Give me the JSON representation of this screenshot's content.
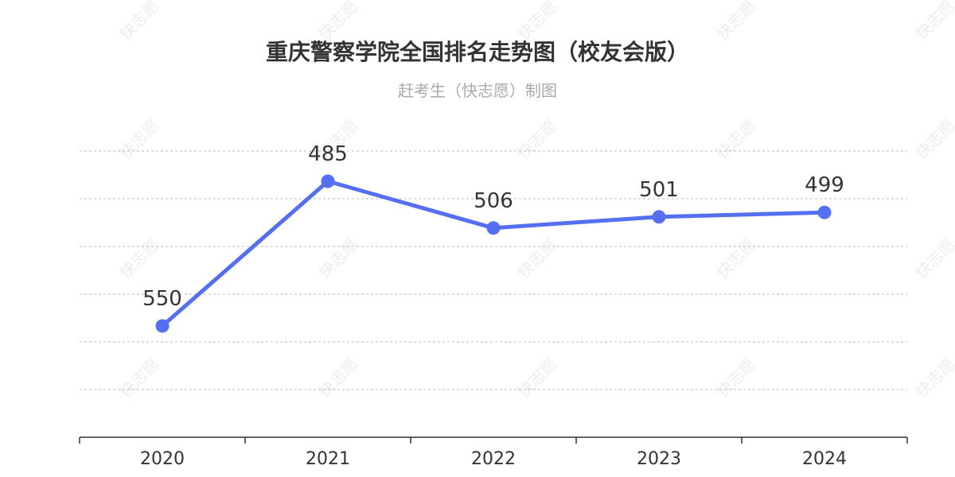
{
  "watermark": "快志愿",
  "colors": {
    "series": "#5470f0",
    "grid": "#bbbbbb",
    "axis": "#333333"
  },
  "chart_data": {
    "type": "line",
    "title": "重庆警察学院全国排名走势图（校友会版）",
    "subtitle": "赶考生（快志愿）制图",
    "x": [
      "2020",
      "2021",
      "2022",
      "2023",
      "2024"
    ],
    "series": [
      {
        "values": [
          550,
          485,
          506,
          501,
          499
        ]
      }
    ],
    "y_inverse": true,
    "ylim": [
      450,
      600
    ],
    "grid": true,
    "data_labels": true
  }
}
